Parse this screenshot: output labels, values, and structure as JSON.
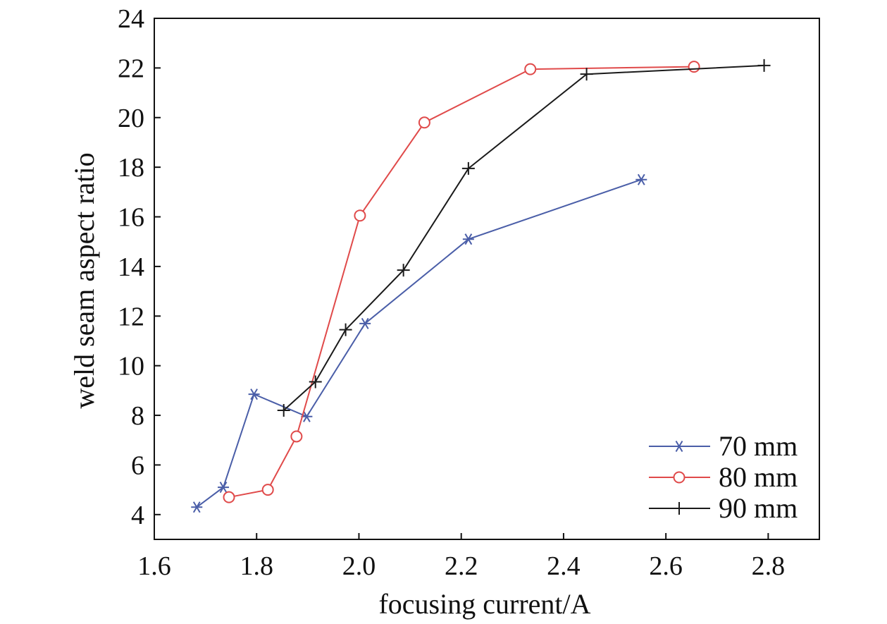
{
  "chart_data": {
    "type": "line",
    "title": "",
    "xlabel": "focusing current/A",
    "ylabel": "weld seam aspect ratio",
    "xlim": [
      1.6,
      2.9
    ],
    "ylim": [
      3,
      24
    ],
    "xticks": [
      1.6,
      1.8,
      2.0,
      2.2,
      2.4,
      2.6,
      2.8
    ],
    "xtick_labels": [
      "1.6",
      "1.8",
      "2.0",
      "2.2",
      "2.4",
      "2.6",
      "2.8"
    ],
    "yticks": [
      4,
      6,
      8,
      10,
      12,
      14,
      16,
      18,
      20,
      22,
      24
    ],
    "ytick_labels": [
      "4",
      "6",
      "8",
      "10",
      "12",
      "14",
      "16",
      "18",
      "20",
      "22",
      "24"
    ],
    "grid": false,
    "legend_position": "bottom-right",
    "series": [
      {
        "name": "70 mm",
        "color": "#4a5ea8",
        "marker": "asterisk",
        "x": [
          1.683,
          1.735,
          1.795,
          1.898,
          2.012,
          2.214,
          2.552
        ],
        "y": [
          4.3,
          5.1,
          8.85,
          7.95,
          11.7,
          15.1,
          17.5
        ]
      },
      {
        "name": "80 mm",
        "color": "#e04a4a",
        "marker": "circle",
        "x": [
          1.746,
          1.822,
          1.878,
          2.002,
          2.128,
          2.335,
          2.655
        ],
        "y": [
          4.7,
          5.0,
          7.15,
          16.05,
          19.8,
          21.95,
          22.05
        ]
      },
      {
        "name": "90 mm",
        "color": "#1a1a1a",
        "marker": "plus",
        "x": [
          1.853,
          1.915,
          1.974,
          2.087,
          2.214,
          2.445,
          2.792
        ],
        "y": [
          8.2,
          9.35,
          11.45,
          13.85,
          17.95,
          21.75,
          22.1
        ]
      }
    ]
  }
}
